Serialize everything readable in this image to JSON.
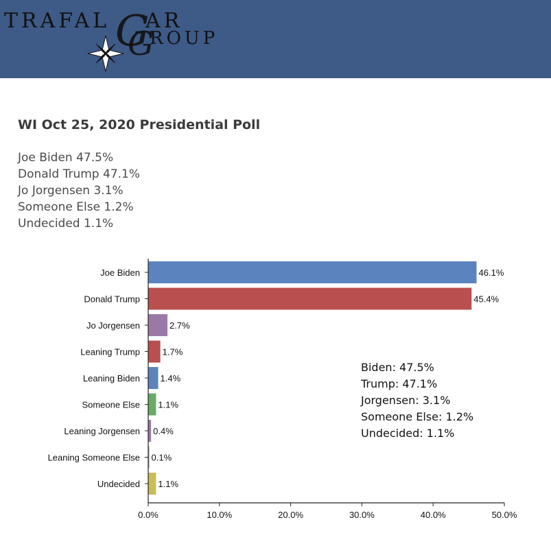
{
  "brand": {
    "name_part1": "TRAFAL",
    "name_part2": "AR",
    "name_part3": "ROUP",
    "script_letter1": "G",
    "script_letter2": "G",
    "header_color": "#3e5a86"
  },
  "title": "WI Oct 25, 2020 Presidential Poll",
  "summary": [
    "Joe Biden 47.5%",
    "Donald Trump 47.1%",
    "Jo Jorgensen 3.1%",
    "Someone Else 1.2%",
    "Undecided 1.1%"
  ],
  "chart_data": {
    "type": "bar",
    "orientation": "horizontal",
    "categories": [
      "Joe Biden",
      "Donald Trump",
      "Jo Jorgensen",
      "Leaning Trump",
      "Leaning Biden",
      "Someone Else",
      "Leaning Jorgensen",
      "Leaning Someone Else",
      "Undecided"
    ],
    "values": [
      46.1,
      45.4,
      2.7,
      1.7,
      1.4,
      1.1,
      0.4,
      0.1,
      1.1
    ],
    "value_labels": [
      "46.1%",
      "45.4%",
      "2.7%",
      "1.7%",
      "1.4%",
      "1.1%",
      "0.4%",
      "0.1%",
      "1.1%"
    ],
    "colors": [
      "#5b84bf",
      "#b94f4f",
      "#9a79a7",
      "#b94f4f",
      "#5b84bf",
      "#6aaa64",
      "#9a79a7",
      "#999999",
      "#c9bd57"
    ],
    "xlim": [
      0,
      50
    ],
    "xticks": [
      0,
      10,
      20,
      30,
      40,
      50
    ],
    "xtick_labels": [
      "0.0%",
      "10.0%",
      "20.0%",
      "30.0%",
      "40.0%",
      "50.0%"
    ],
    "grid": false,
    "annotation": {
      "lines": [
        "Biden: 47.5%",
        "Trump: 47.1%",
        "Jorgensen: 3.1%",
        "Someone Else: 1.2%",
        "Undecided: 1.1%"
      ]
    }
  }
}
